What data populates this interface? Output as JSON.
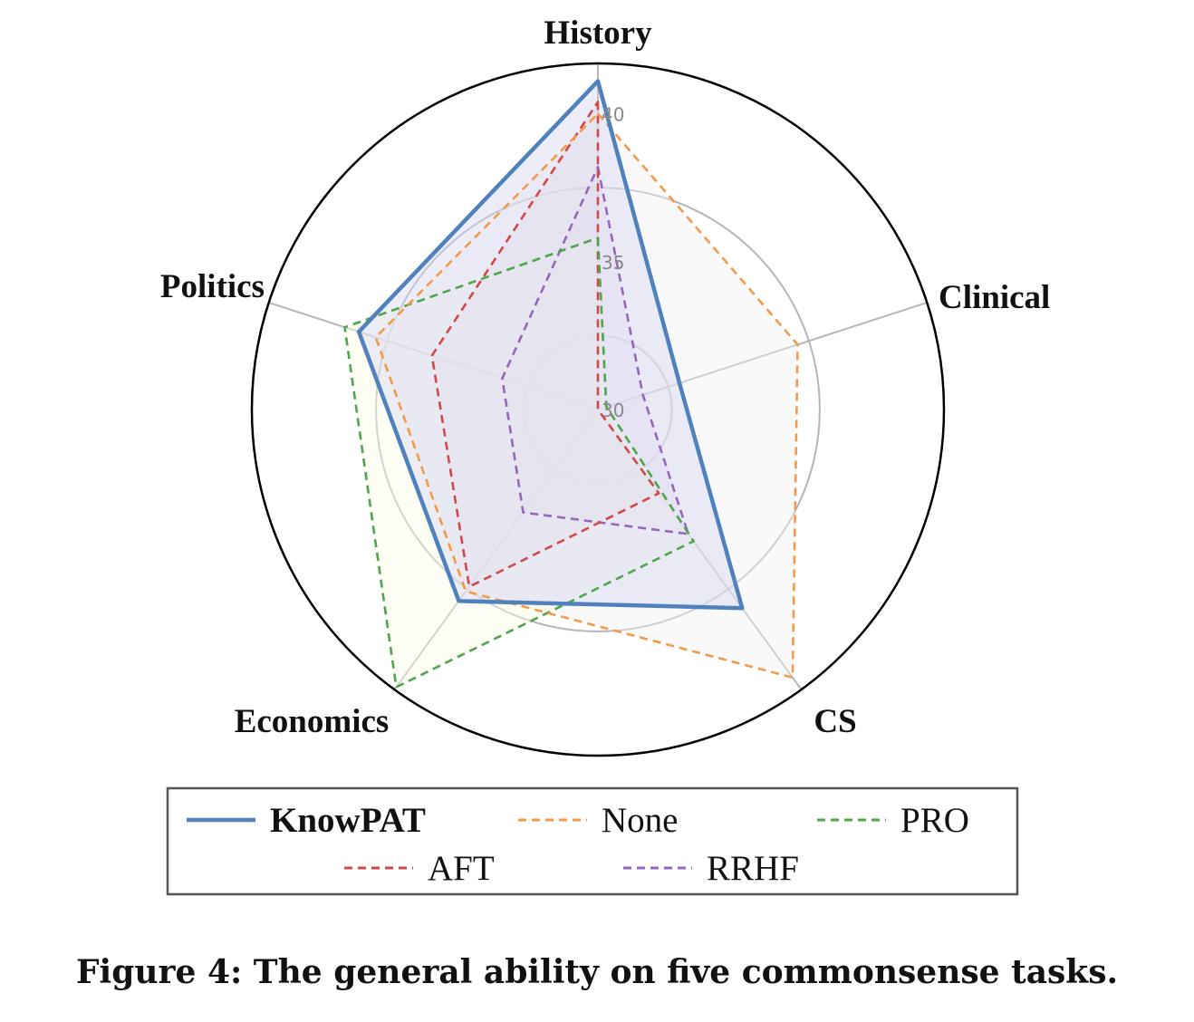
{
  "chart_data": {
    "type": "radar",
    "axes": [
      "History",
      "Clinical",
      "CS",
      "Economics",
      "Politics"
    ],
    "radial_ticks": [
      "30",
      "35",
      "40"
    ],
    "rlim": [
      30,
      41.7
    ],
    "grid": true,
    "legend_position": "bottom",
    "series": [
      {
        "name": "KnowPAT",
        "color": "#4f81bd",
        "style": "solid",
        "fill": "#d6d6f5",
        "values": [
          41.1,
          32.9,
          38.3,
          38.0,
          38.5
        ]
      },
      {
        "name": "None",
        "color": "#f39a4a",
        "style": "dashed",
        "fill": "#f2f2f2",
        "values": [
          40.0,
          37.1,
          41.2,
          37.6,
          37.9
        ]
      },
      {
        "name": "PRO",
        "color": "#4ea64b",
        "style": "dashed",
        "fill": "#fbfbe6",
        "values": [
          35.8,
          30.3,
          35.5,
          41.6,
          39.0
        ]
      },
      {
        "name": "AFT",
        "color": "#d04848",
        "style": "dashed",
        "fill": "#ebd2d2",
        "values": [
          40.4,
          30.0,
          33.5,
          37.4,
          35.9
        ]
      },
      {
        "name": "RRHF",
        "color": "#9467bd",
        "style": "dashed",
        "fill": "#e6d6ee",
        "values": [
          38.2,
          31.6,
          35.2,
          34.3,
          33.4
        ]
      }
    ]
  },
  "caption": "Figure 4: The general ability on five commonsense tasks."
}
